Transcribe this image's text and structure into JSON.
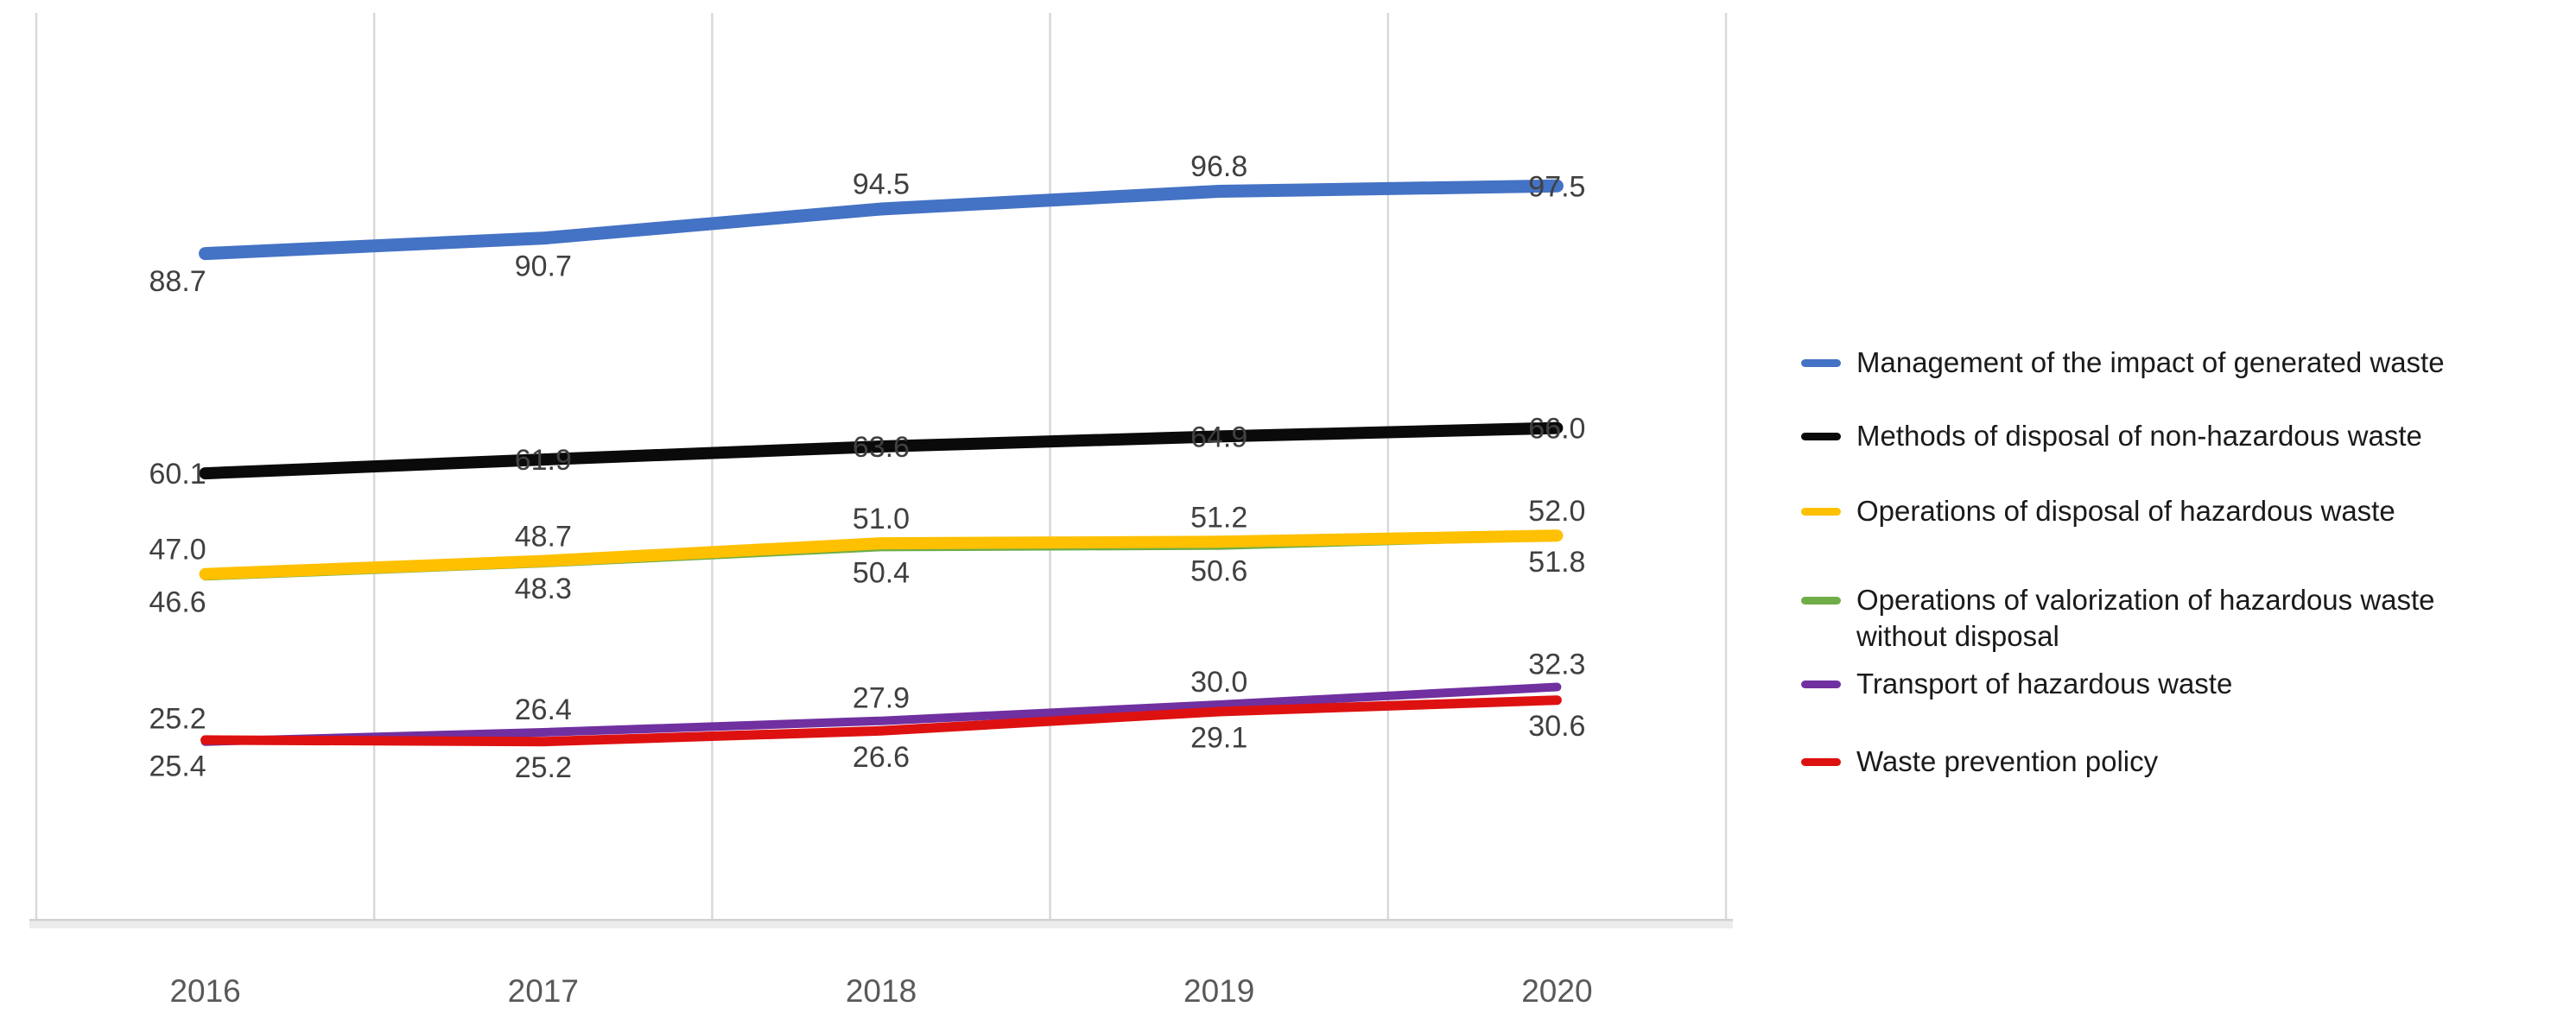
{
  "chart_data": {
    "type": "line",
    "title": "",
    "xlabel": "",
    "ylabel": "",
    "categories": [
      "2016",
      "2017",
      "2018",
      "2019",
      "2020"
    ],
    "ylim": [
      0,
      120
    ],
    "grid": "vertical-only",
    "gridline_color": "#D9D9D9",
    "axis_tick_color": "#595959",
    "data_label_color": "#404040",
    "legend_position": "right",
    "data_labels": true,
    "series": [
      {
        "name": "Management of the impact of generated waste",
        "color": "#4472C4",
        "values": [
          88.7,
          90.7,
          94.5,
          96.8,
          97.5
        ],
        "label_side": [
          "below",
          "below",
          "above",
          "above",
          "on"
        ]
      },
      {
        "name": "Methods of disposal of non-hazardous waste",
        "color": "#0A0A0A",
        "values": [
          60.1,
          61.9,
          63.6,
          64.9,
          66.0
        ],
        "label_side": "on"
      },
      {
        "name": "Operations of disposal of hazardous waste",
        "color": "#FFC000",
        "values": [
          47.0,
          48.7,
          51.0,
          51.2,
          52.0
        ],
        "label_side": "above"
      },
      {
        "name": "Operations of valorization of hazardous waste without disposal",
        "color": "#70AD47",
        "values": [
          46.6,
          48.3,
          50.4,
          50.6,
          51.8
        ],
        "label_side": "below"
      },
      {
        "name": "Transport of hazardous waste",
        "color": "#7030A0",
        "values": [
          25.2,
          26.4,
          27.9,
          30.0,
          32.3
        ],
        "label_side": "above"
      },
      {
        "name": "Waste prevention policy",
        "color": "#DE1111",
        "values": [
          25.4,
          25.2,
          26.6,
          29.1,
          30.6
        ],
        "label_side": "below"
      }
    ]
  }
}
